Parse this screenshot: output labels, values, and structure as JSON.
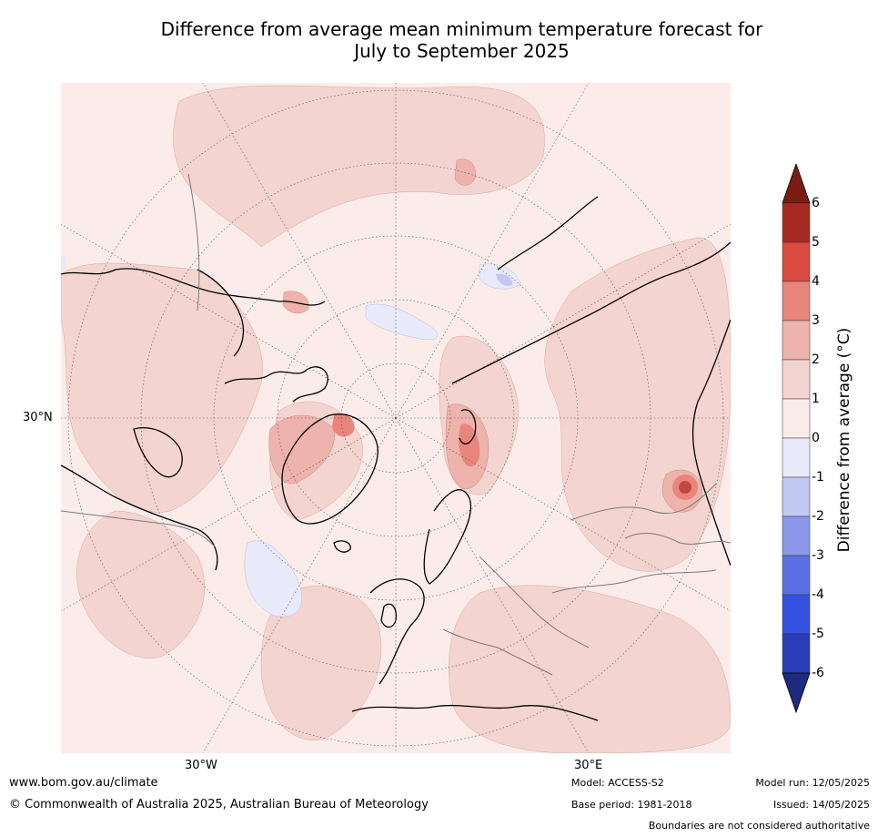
{
  "title": {
    "line1": "Difference from average mean minimum temperature forecast for",
    "line2": "July to September 2025"
  },
  "map": {
    "projection": "north-polar-stereographic",
    "lat_label": "30°N",
    "lon_labels": {
      "west": "30°W",
      "east": "30°E"
    }
  },
  "colorbar": {
    "title": "Difference from average (°C)",
    "ticks": [
      "6",
      "5",
      "4",
      "3",
      "2",
      "1",
      "0",
      "-1",
      "-2",
      "-3",
      "-4",
      "-5",
      "-6"
    ],
    "colors": {
      "gt6": "#7a1c14",
      "5_6": "#a72a22",
      "4_5": "#d94b3f",
      "3_4": "#e8857d",
      "2_3": "#edb3ac",
      "1_2": "#f4d4d0",
      "0_1": "#fbecea",
      "m1_0": "#e8eafa",
      "m2_m1": "#c1c8f1",
      "m3_m2": "#8b98ea",
      "m4_m3": "#5b6fe4",
      "m5_m4": "#3451e0",
      "m6_m5": "#2a3db8",
      "lt_m6": "#1e2a80"
    }
  },
  "footer": {
    "url": "www.bom.gov.au/climate",
    "copyright": "© Commonwealth of Australia 2025, Australian Bureau of Meteorology",
    "model": "Model: ACCESS-S2",
    "base_period": "Base period: 1981-2018",
    "model_run": "Model run: 12/05/2025",
    "issued": "Issued: 14/05/2025",
    "boundaries_note": "Boundaries are not considered authoritative"
  }
}
